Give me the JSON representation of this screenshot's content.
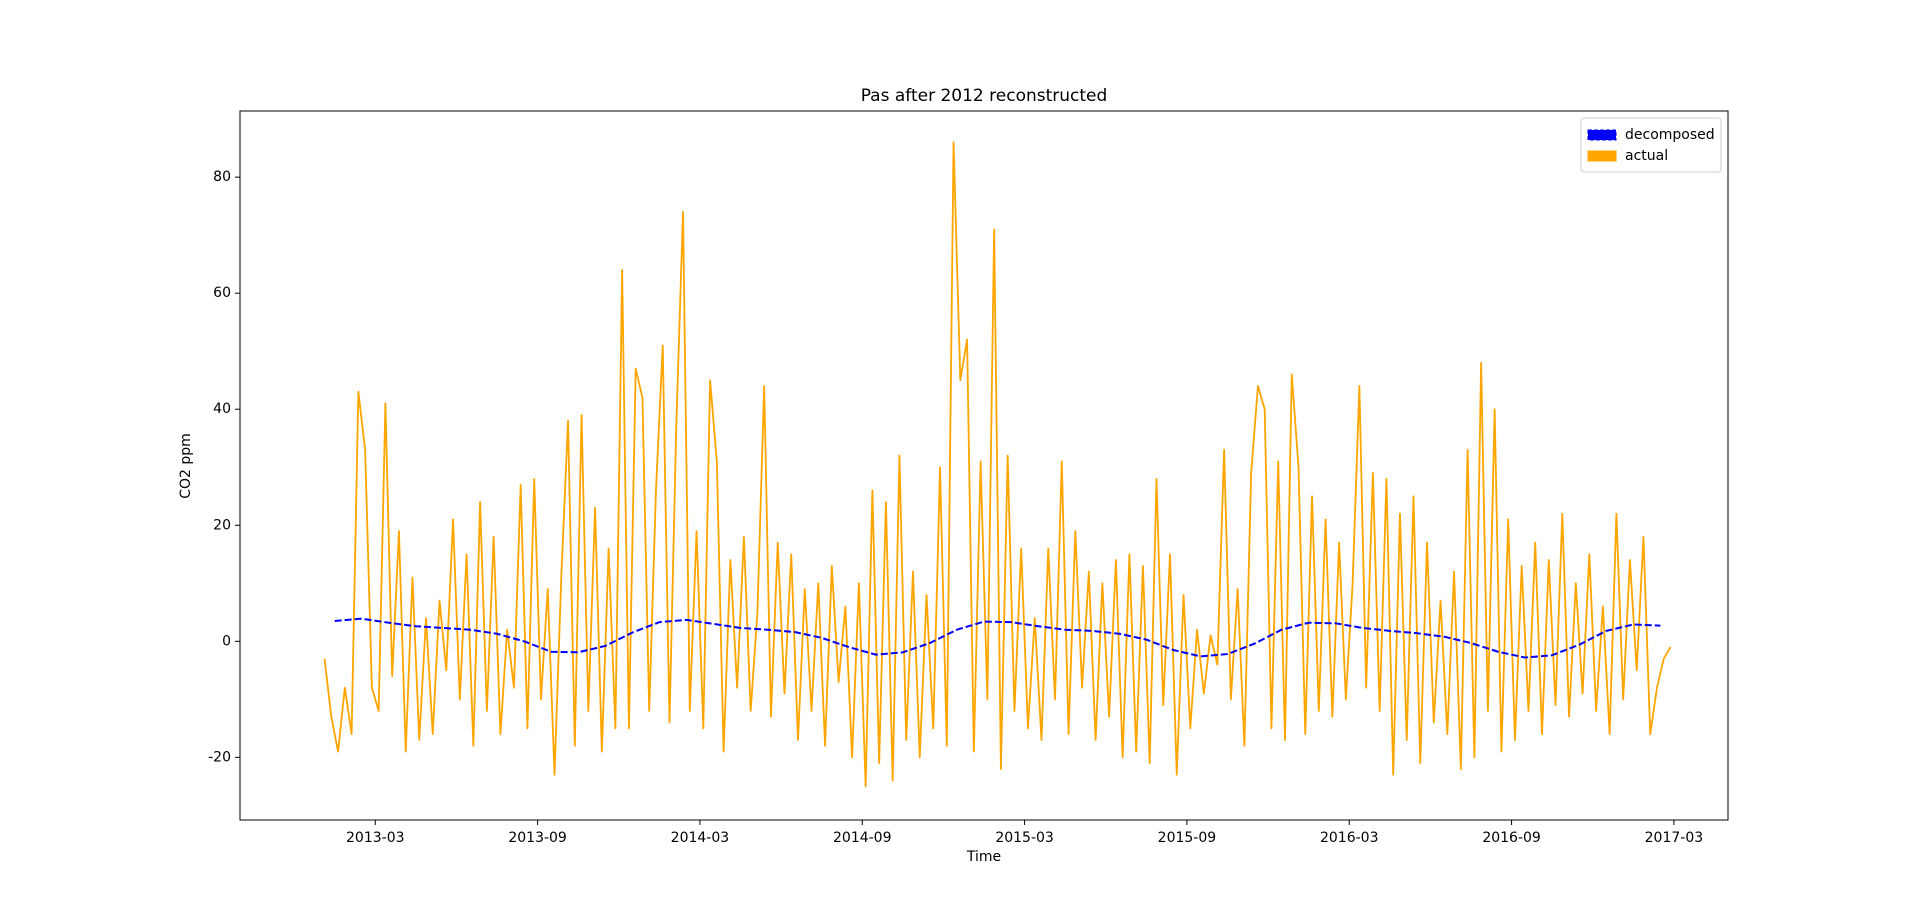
{
  "chart_data": {
    "type": "line",
    "title": "Pas after 2012 reconstructed",
    "xlabel": "Time",
    "ylabel": "CO2 ppm",
    "xlim": [
      "2012-10",
      "2017-05"
    ],
    "xticks": [
      "2013-03",
      "2013-09",
      "2014-03",
      "2014-09",
      "2015-03",
      "2015-09",
      "2016-03",
      "2016-09",
      "2017-03"
    ],
    "ylim": [
      -30.8,
      91.4
    ],
    "yticks": [
      -20,
      0,
      20,
      40,
      60,
      80
    ],
    "grid": false,
    "legend": "upper right",
    "series": [
      {
        "name": "decomposed",
        "color": "#0000ff",
        "dashed": true,
        "x": [
          "2013-01",
          "2013-02",
          "2013-03",
          "2013-04",
          "2013-05",
          "2013-06",
          "2013-07",
          "2013-08",
          "2013-09",
          "2013-10",
          "2013-11",
          "2013-12",
          "2014-01",
          "2014-02",
          "2014-03",
          "2014-04",
          "2014-05",
          "2014-06",
          "2014-07",
          "2014-08",
          "2014-09",
          "2014-10",
          "2014-11",
          "2014-12",
          "2015-01",
          "2015-02",
          "2015-03",
          "2015-04",
          "2015-05",
          "2015-06",
          "2015-07",
          "2015-08",
          "2015-09",
          "2015-10",
          "2015-11",
          "2015-12",
          "2016-01",
          "2016-02",
          "2016-03",
          "2016-04",
          "2016-05",
          "2016-06",
          "2016-07",
          "2016-08",
          "2016-09",
          "2016-10",
          "2016-11",
          "2016-12",
          "2017-01",
          "2017-02"
        ],
        "values": [
          3.5,
          3.9,
          3.2,
          2.6,
          2.3,
          2.0,
          1.3,
          0.0,
          -1.8,
          -1.9,
          -0.8,
          1.5,
          3.3,
          3.7,
          3.0,
          2.3,
          2.0,
          1.6,
          0.6,
          -1.0,
          -2.3,
          -1.9,
          -0.3,
          2.0,
          3.4,
          3.3,
          2.6,
          2.0,
          1.8,
          1.3,
          0.3,
          -1.5,
          -2.6,
          -2.2,
          -0.4,
          2.0,
          3.2,
          3.1,
          2.3,
          1.8,
          1.4,
          0.8,
          -0.3,
          -1.8,
          -2.8,
          -2.4,
          -0.6,
          1.8,
          2.9,
          2.7
        ]
      },
      {
        "name": "actual",
        "color": "#ffa500",
        "dashed": false,
        "x": [
          "2013-01",
          "2013-01",
          "2013-01",
          "2013-01",
          "2013-02",
          "2013-02",
          "2013-02",
          "2013-02",
          "2013-03",
          "2013-03",
          "2013-03",
          "2013-03",
          "2013-04",
          "2013-04",
          "2013-04",
          "2013-04",
          "2013-05",
          "2013-05",
          "2013-05",
          "2013-05",
          "2013-06",
          "2013-06",
          "2013-06",
          "2013-06",
          "2013-07",
          "2013-07",
          "2013-07",
          "2013-07",
          "2013-08",
          "2013-08",
          "2013-08",
          "2013-08",
          "2013-09",
          "2013-09",
          "2013-09",
          "2013-09",
          "2013-10",
          "2013-10",
          "2013-10",
          "2013-10",
          "2013-11",
          "2013-11",
          "2013-11",
          "2013-11",
          "2013-12",
          "2013-12",
          "2013-12",
          "2013-12",
          "2014-01",
          "2014-01",
          "2014-01",
          "2014-01",
          "2014-02",
          "2014-02",
          "2014-02",
          "2014-02",
          "2014-03",
          "2014-03",
          "2014-03",
          "2014-03",
          "2014-04",
          "2014-04",
          "2014-04",
          "2014-04",
          "2014-05",
          "2014-05",
          "2014-05",
          "2014-05",
          "2014-06",
          "2014-06",
          "2014-06",
          "2014-06",
          "2014-07",
          "2014-07",
          "2014-07",
          "2014-07",
          "2014-08",
          "2014-08",
          "2014-08",
          "2014-08",
          "2014-09",
          "2014-09",
          "2014-09",
          "2014-09",
          "2014-10",
          "2014-10",
          "2014-10",
          "2014-10",
          "2014-11",
          "2014-11",
          "2014-11",
          "2014-11",
          "2014-12",
          "2014-12",
          "2014-12",
          "2014-12",
          "2015-01",
          "2015-01",
          "2015-01",
          "2015-01",
          "2015-02",
          "2015-02",
          "2015-02",
          "2015-02",
          "2015-03",
          "2015-03",
          "2015-03",
          "2015-03",
          "2015-04",
          "2015-04",
          "2015-04",
          "2015-04",
          "2015-05",
          "2015-05",
          "2015-05",
          "2015-05",
          "2015-06",
          "2015-06",
          "2015-06",
          "2015-06",
          "2015-07",
          "2015-07",
          "2015-07",
          "2015-07",
          "2015-08",
          "2015-08",
          "2015-08",
          "2015-08",
          "2015-09",
          "2015-09",
          "2015-09",
          "2015-09",
          "2015-10",
          "2015-10",
          "2015-10",
          "2015-10",
          "2015-11",
          "2015-11",
          "2015-11",
          "2015-11",
          "2015-12",
          "2015-12",
          "2015-12",
          "2015-12",
          "2016-01",
          "2016-01",
          "2016-01",
          "2016-01",
          "2016-02",
          "2016-02",
          "2016-02",
          "2016-02",
          "2016-03",
          "2016-03",
          "2016-03",
          "2016-03",
          "2016-04",
          "2016-04",
          "2016-04",
          "2016-04",
          "2016-05",
          "2016-05",
          "2016-05",
          "2016-05",
          "2016-06",
          "2016-06",
          "2016-06",
          "2016-06",
          "2016-07",
          "2016-07",
          "2016-07",
          "2016-07",
          "2016-08",
          "2016-08",
          "2016-08",
          "2016-08",
          "2016-09",
          "2016-09",
          "2016-09",
          "2016-09",
          "2016-10",
          "2016-10",
          "2016-10",
          "2016-10",
          "2016-11",
          "2016-11",
          "2016-11",
          "2016-11",
          "2016-12",
          "2016-12",
          "2016-12",
          "2016-12",
          "2017-01",
          "2017-01",
          "2017-01",
          "2017-01",
          "2017-02",
          "2017-02",
          "2017-02",
          "2017-02"
        ],
        "values": [
          -3,
          -13,
          -19,
          -8,
          -16,
          43,
          33,
          -8,
          -12,
          41,
          -6,
          19,
          -19,
          11,
          -17,
          4,
          -16,
          7,
          -5,
          21,
          -10,
          15,
          -18,
          24,
          -12,
          18,
          -16,
          2,
          -8,
          27,
          -15,
          28,
          -10,
          9,
          -23,
          11,
          38,
          -18,
          39,
          -12,
          23,
          -19,
          16,
          -15,
          64,
          -15,
          47,
          42,
          -12,
          26,
          51,
          -14,
          37,
          74,
          -12,
          19,
          -15,
          45,
          31,
          -19,
          14,
          -8,
          18,
          -12,
          5,
          44,
          -13,
          17,
          -9,
          15,
          -17,
          9,
          -12,
          10,
          -18,
          13,
          -7,
          6,
          -20,
          10,
          -25,
          26,
          -21,
          24,
          -24,
          32,
          -17,
          12,
          -20,
          8,
          -15,
          30,
          -18,
          86,
          45,
          52,
          -19,
          31,
          -10,
          71,
          -22,
          32,
          -12,
          16,
          -15,
          4,
          -17,
          16,
          -10,
          31,
          -16,
          19,
          -8,
          12,
          -17,
          10,
          -13,
          14,
          -20,
          15,
          -19,
          13,
          -21,
          28,
          -11,
          15,
          -23,
          8,
          -15,
          2,
          -9,
          1,
          -4,
          33,
          -10,
          9,
          -18,
          29,
          44,
          40,
          -15,
          31,
          -17,
          46,
          30,
          -16,
          25,
          -12,
          21,
          -13,
          17,
          -10,
          10,
          44,
          -8,
          29,
          -12,
          28,
          -23,
          22,
          -17,
          25,
          -21,
          17,
          -14,
          7,
          -16,
          12,
          -22,
          33,
          -20,
          48,
          -12,
          40,
          -19,
          21,
          -17,
          13,
          -12,
          17,
          -16,
          14,
          -11,
          22,
          -13,
          10,
          -9,
          15,
          -12,
          6,
          -16,
          22,
          -10,
          14,
          -5,
          18,
          -16,
          -8,
          -3,
          -1
        ]
      }
    ]
  }
}
